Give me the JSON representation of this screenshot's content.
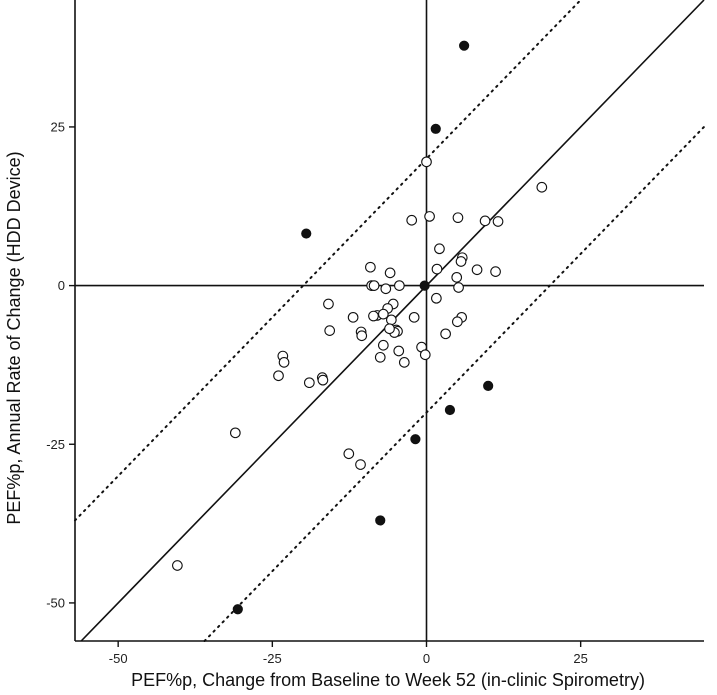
{
  "chart_data": {
    "type": "scatter",
    "title": "",
    "xlabel": "PEF%p, Change from Baseline to Week 52 (in-clinic Spirometry)",
    "ylabel": "PEF%p, Annual Rate of Change (HDD Device)",
    "xlim": [
      -57,
      45
    ],
    "ylim": [
      -56,
      45
    ],
    "xticks": [
      -50,
      -25,
      0,
      25
    ],
    "xtick_labels": [
      "-50",
      "-25",
      "0",
      "25"
    ],
    "yticks": [
      -50,
      -25,
      0,
      25
    ],
    "ytick_labels": [
      "-50",
      "-25",
      "0",
      "25"
    ],
    "grid": false,
    "reference_lines": [
      {
        "name": "identity",
        "style": "solid",
        "slope": 1,
        "intercept": 0
      },
      {
        "name": "upper-limit",
        "style": "dotted",
        "slope": 1,
        "intercept": 20
      },
      {
        "name": "lower-limit",
        "style": "dotted",
        "slope": 1,
        "intercept": -20
      },
      {
        "name": "zero-horizontal",
        "style": "solid",
        "orientation": "horizontal",
        "value": 0
      },
      {
        "name": "zero-vertical",
        "style": "solid",
        "orientation": "vertical",
        "value": 0
      }
    ],
    "series": [
      {
        "name": "open",
        "marker": "open-circle",
        "points": [
          [
            0,
            19.5
          ],
          [
            18.7,
            15.5
          ],
          [
            -2.4,
            10.3
          ],
          [
            0.5,
            10.9
          ],
          [
            5.1,
            10.7
          ],
          [
            9.5,
            10.2
          ],
          [
            11.6,
            10.1
          ],
          [
            2.1,
            5.8
          ],
          [
            5.8,
            4.4
          ],
          [
            5.6,
            3.8
          ],
          [
            -9.1,
            2.9
          ],
          [
            1.7,
            2.6
          ],
          [
            8.2,
            2.5
          ],
          [
            11.2,
            2.2
          ],
          [
            -5.9,
            2.0
          ],
          [
            4.9,
            1.3
          ],
          [
            -6.6,
            -0.5
          ],
          [
            -8.9,
            0.0
          ],
          [
            -8.5,
            0.0
          ],
          [
            -4.4,
            0.0
          ],
          [
            5.2,
            -0.3
          ],
          [
            -15.9,
            -2.9
          ],
          [
            -5.4,
            -2.9
          ],
          [
            1.6,
            -2.0
          ],
          [
            -6.3,
            -3.6
          ],
          [
            -8.0,
            -4.7
          ],
          [
            -8.6,
            -4.8
          ],
          [
            -7.0,
            -4.5
          ],
          [
            -11.9,
            -5.0
          ],
          [
            -5.7,
            -5.4
          ],
          [
            -2.0,
            -5.0
          ],
          [
            5.7,
            -5.0
          ],
          [
            5.0,
            -5.7
          ],
          [
            -4.9,
            -7.0
          ],
          [
            -4.7,
            -7.2
          ],
          [
            -10.6,
            -7.3
          ],
          [
            -5.2,
            -7.4
          ],
          [
            -6.0,
            -6.8
          ],
          [
            3.1,
            -7.6
          ],
          [
            -15.7,
            -7.1
          ],
          [
            -10.5,
            -7.9
          ],
          [
            -7.0,
            -9.4
          ],
          [
            -0.8,
            -9.7
          ],
          [
            -4.5,
            -10.3
          ],
          [
            -0.2,
            -10.9
          ],
          [
            -7.5,
            -11.3
          ],
          [
            -3.6,
            -12.1
          ],
          [
            -23.3,
            -11.1
          ],
          [
            -23.1,
            -12.1
          ],
          [
            -16.9,
            -14.5
          ],
          [
            -16.8,
            -14.9
          ],
          [
            -19.0,
            -15.3
          ],
          [
            -24.0,
            -14.2
          ],
          [
            -31.0,
            -23.2
          ],
          [
            -12.6,
            -26.5
          ],
          [
            -10.7,
            -28.2
          ],
          [
            -40.4,
            -44.1
          ]
        ]
      },
      {
        "name": "filled",
        "marker": "filled-circle",
        "points": [
          [
            6.1,
            37.8
          ],
          [
            1.5,
            24.7
          ],
          [
            -19.5,
            8.2
          ],
          [
            -0.3,
            0.0
          ],
          [
            10.0,
            -15.8
          ],
          [
            3.8,
            -19.6
          ],
          [
            -1.8,
            -24.2
          ],
          [
            -7.5,
            -37.0
          ],
          [
            -30.6,
            -51.0
          ]
        ]
      }
    ]
  }
}
